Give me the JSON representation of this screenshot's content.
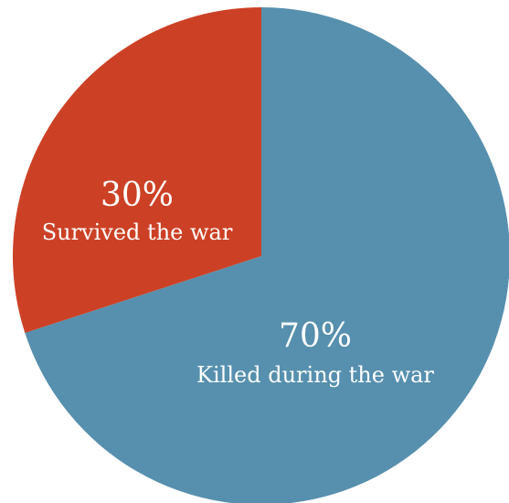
{
  "chart_data": {
    "type": "pie",
    "title": "",
    "categories": [
      "Killed during the war",
      "Survived the war"
    ],
    "values": [
      70,
      30
    ],
    "value_labels": [
      "70%",
      "30%"
    ],
    "colors": [
      "#5790ae",
      "#cc4125"
    ],
    "start": "12 o'clock, clockwise",
    "legend": "none"
  }
}
